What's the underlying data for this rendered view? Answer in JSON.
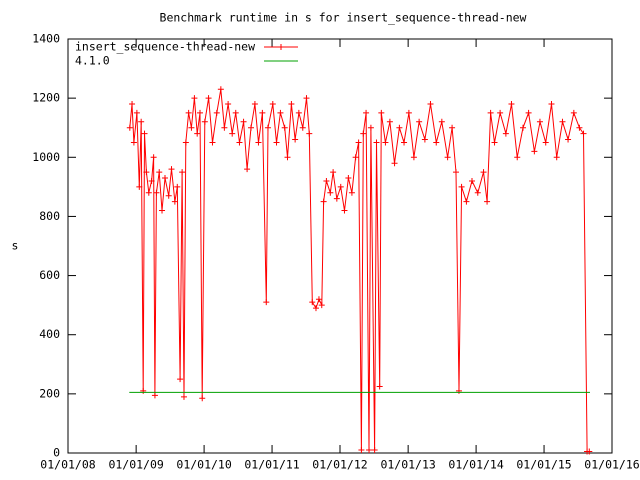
{
  "chart_data": {
    "type": "line",
    "title": "Benchmark runtime in s for insert_sequence-thread-new",
    "ylabel": "s",
    "xlim": [
      "2008-01-01",
      "2016-01-01"
    ],
    "xticks": [
      {
        "value": "2008-01-01",
        "label": "01/01/08"
      },
      {
        "value": "2009-01-01",
        "label": "01/01/09"
      },
      {
        "value": "2010-01-01",
        "label": "01/01/10"
      },
      {
        "value": "2011-01-01",
        "label": "01/01/11"
      },
      {
        "value": "2012-01-01",
        "label": "01/01/12"
      },
      {
        "value": "2013-01-01",
        "label": "01/01/13"
      },
      {
        "value": "2014-01-01",
        "label": "01/01/14"
      },
      {
        "value": "2015-01-01",
        "label": "01/01/15"
      },
      {
        "value": "2016-01-01",
        "label": "01/01/16"
      }
    ],
    "ylim": [
      0,
      1400
    ],
    "yticks": [
      0,
      200,
      400,
      600,
      800,
      1000,
      1200,
      1400
    ],
    "grid": false,
    "legend": "top-left",
    "series": [
      {
        "name": "insert_sequence-thread-new",
        "color": "#ff0000",
        "markers": true,
        "x": [
          "2008-11-28",
          "2008-12-10",
          "2008-12-20",
          "2009-01-05",
          "2009-01-18",
          "2009-01-28",
          "2009-02-08",
          "2009-02-15",
          "2009-02-25",
          "2009-03-10",
          "2009-03-25",
          "2009-04-05",
          "2009-04-12",
          "2009-04-20",
          "2009-05-05",
          "2009-05-20",
          "2009-06-05",
          "2009-06-25",
          "2009-07-10",
          "2009-07-28",
          "2009-08-10",
          "2009-08-25",
          "2009-09-05",
          "2009-09-15",
          "2009-09-25",
          "2009-10-10",
          "2009-10-25",
          "2009-11-10",
          "2009-11-25",
          "2009-12-10",
          "2009-12-22",
          "2010-01-05",
          "2010-01-25",
          "2010-02-15",
          "2010-03-10",
          "2010-04-01",
          "2010-04-20",
          "2010-05-10",
          "2010-06-01",
          "2010-06-20",
          "2010-07-10",
          "2010-08-01",
          "2010-08-20",
          "2010-09-10",
          "2010-10-01",
          "2010-10-20",
          "2010-11-10",
          "2010-12-01",
          "2010-12-10",
          "2011-01-05",
          "2011-01-25",
          "2011-02-15",
          "2011-03-10",
          "2011-03-25",
          "2011-04-15",
          "2011-05-05",
          "2011-05-25",
          "2011-06-15",
          "2011-07-05",
          "2011-07-20",
          "2011-08-05",
          "2011-08-25",
          "2011-09-10",
          "2011-09-25",
          "2011-10-05",
          "2011-10-20",
          "2011-11-10",
          "2011-11-25",
          "2011-12-15",
          "2012-01-05",
          "2012-01-25",
          "2012-02-15",
          "2012-03-05",
          "2012-03-25",
          "2012-04-10",
          "2012-04-25",
          "2012-05-05",
          "2012-05-20",
          "2012-06-05",
          "2012-06-15",
          "2012-07-05",
          "2012-07-15",
          "2012-08-01",
          "2012-08-10",
          "2012-09-01",
          "2012-09-25",
          "2012-10-20",
          "2012-11-15",
          "2012-12-10",
          "2013-01-05",
          "2013-02-01",
          "2013-03-01",
          "2013-04-01",
          "2013-05-01",
          "2013-06-01",
          "2013-07-01",
          "2013-08-01",
          "2013-08-25",
          "2013-09-15",
          "2013-10-01",
          "2013-10-15",
          "2013-11-10",
          "2013-12-10",
          "2014-01-10",
          "2014-02-10",
          "2014-03-01",
          "2014-03-20",
          "2014-04-10",
          "2014-05-10",
          "2014-06-10",
          "2014-07-10",
          "2014-08-10",
          "2014-09-10",
          "2014-10-10",
          "2014-11-10",
          "2014-12-10",
          "2015-01-10",
          "2015-02-10",
          "2015-03-10",
          "2015-04-10",
          "2015-05-10",
          "2015-06-10",
          "2015-07-10",
          "2015-08-01",
          "2015-08-20",
          "2015-09-01"
        ],
        "values": [
          1100,
          1180,
          1050,
          1150,
          900,
          1120,
          210,
          1080,
          950,
          880,
          920,
          1000,
          195,
          880,
          950,
          820,
          930,
          870,
          960,
          850,
          900,
          250,
          950,
          190,
          1050,
          1150,
          1100,
          1200,
          1080,
          1150,
          185,
          1120,
          1200,
          1050,
          1150,
          1230,
          1100,
          1180,
          1080,
          1150,
          1050,
          1120,
          960,
          1100,
          1180,
          1050,
          1150,
          510,
          1100,
          1180,
          1050,
          1150,
          1100,
          1000,
          1180,
          1060,
          1150,
          1100,
          1200,
          1080,
          510,
          490,
          520,
          500,
          850,
          920,
          880,
          950,
          860,
          900,
          820,
          930,
          880,
          1000,
          1050,
          10,
          1080,
          1150,
          10,
          1100,
          10,
          1050,
          225,
          1150,
          1050,
          1120,
          980,
          1100,
          1050,
          1150,
          1000,
          1120,
          1060,
          1180,
          1050,
          1120,
          1000,
          1100,
          950,
          210,
          900,
          850,
          920,
          880,
          950,
          850,
          1150,
          1050,
          1150,
          1080,
          1180,
          1000,
          1100,
          1150,
          1020,
          1120,
          1050,
          1180,
          1000,
          1120,
          1060,
          1150,
          1100,
          1080,
          5,
          5
        ]
      },
      {
        "name": "4.1.0",
        "color": "#00a000",
        "markers": false,
        "x": [
          "2008-11-25",
          "2015-09-05"
        ],
        "values": [
          205,
          205
        ]
      }
    ]
  }
}
